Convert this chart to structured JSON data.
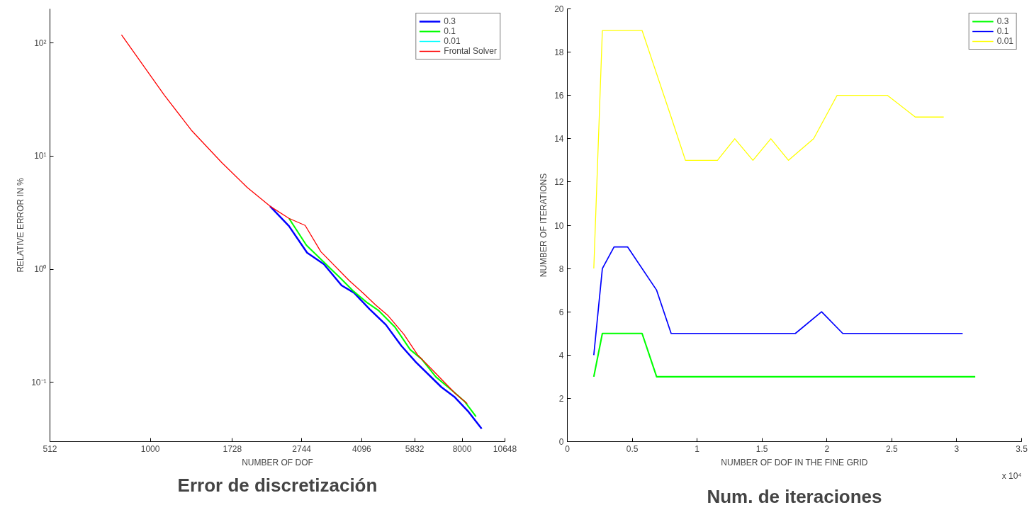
{
  "chart_data": [
    {
      "type": "line",
      "title": "Error de discretización",
      "xlabel": "NUMBER OF DOF",
      "ylabel": "RELATIVE ERROR IN %",
      "log": "xy",
      "grid": false,
      "legend": "top right",
      "xlim": [
        512,
        10648
      ],
      "ylim": [
        0.03,
        200
      ],
      "xticks": [
        512,
        1000,
        1728,
        2744,
        4096,
        5832,
        8000,
        10648
      ],
      "yticks": [
        {
          "value": 0.1,
          "label": "10⁻¹"
        },
        {
          "value": 1,
          "label": "10⁰"
        },
        {
          "value": 10,
          "label": "10¹"
        },
        {
          "value": 100,
          "label": "10²"
        }
      ],
      "series": [
        {
          "name": "0.3",
          "color": "#0000ff",
          "x": [
            2222,
            2521,
            2845,
            3183,
            3582,
            3892,
            4315,
            4810,
            5341,
            5881,
            6968,
            7622,
            8353,
            9116
          ],
          "values": [
            3.61,
            2.41,
            1.4,
            1.11,
            0.72,
            0.62,
            0.445,
            0.324,
            0.21,
            0.151,
            0.091,
            0.074,
            0.055,
            0.039
          ]
        },
        {
          "name": "0.1",
          "color": "#00ff00",
          "x": [
            2521,
            2833,
            3177,
            3547,
            3877,
            4236,
            4591,
            5106,
            5659,
            6108,
            6719,
            7587,
            8133,
            8780
          ],
          "values": [
            2.82,
            1.63,
            1.16,
            0.84,
            0.64,
            0.51,
            0.43,
            0.31,
            0.195,
            0.161,
            0.112,
            0.082,
            0.068,
            0.05
          ]
        },
        {
          "name": "0.01",
          "color": "#00ffff"
        },
        {
          "name": "Frontal Solver",
          "color": "#ff0000",
          "x": [
            825,
            1099,
            1320,
            1610,
            1907,
            2222,
            2521,
            2809,
            3119,
            3775,
            4150,
            4492,
            4887,
            5424,
            5940,
            6550,
            7645,
            8279
          ],
          "values": [
            118,
            34.4,
            16.7,
            8.77,
            5.3,
            3.61,
            2.82,
            2.44,
            1.43,
            0.79,
            0.61,
            0.484,
            0.388,
            0.267,
            0.176,
            0.13,
            0.08,
            0.065
          ]
        }
      ]
    },
    {
      "type": "line",
      "title": "Num. de iteraciones",
      "xlabel": "NUMBER OF DOF IN THE FINE GRID",
      "ylabel": "NUMBER OF ITERATIONS",
      "grid": false,
      "legend": "top right",
      "xlim": [
        0,
        3.5
      ],
      "ylim": [
        0,
        20
      ],
      "xticks": [
        0,
        0.5,
        1,
        1.5,
        2,
        2.5,
        3,
        3.5
      ],
      "yticks": [
        0,
        2,
        4,
        6,
        8,
        10,
        12,
        14,
        16,
        18,
        20
      ],
      "annotations": [
        "x 10⁴"
      ],
      "series": [
        {
          "name": "0.3",
          "color": "#00ff00",
          "x": [
            0.204,
            0.27,
            0.576,
            0.688,
            3.143
          ],
          "values": [
            3,
            5,
            5,
            3,
            3
          ]
        },
        {
          "name": "0.1",
          "color": "#0000ff",
          "x": [
            0.204,
            0.27,
            0.36,
            0.464,
            0.688,
            0.8,
            1.757,
            1.959,
            2.122,
            3.046
          ],
          "values": [
            4,
            8,
            9,
            9,
            7,
            5,
            5,
            6,
            5,
            5
          ]
        },
        {
          "name": "0.01",
          "color": "#ffff00",
          "x": [
            0.204,
            0.27,
            0.576,
            0.688,
            0.8,
            0.91,
            1.157,
            1.29,
            1.43,
            1.568,
            1.704,
            1.898,
            2.078,
            2.467,
            2.681,
            2.9
          ],
          "values": [
            8,
            19,
            19,
            17,
            15,
            13,
            13,
            14,
            13,
            14,
            13,
            14,
            16,
            16,
            15,
            15
          ]
        }
      ]
    }
  ]
}
